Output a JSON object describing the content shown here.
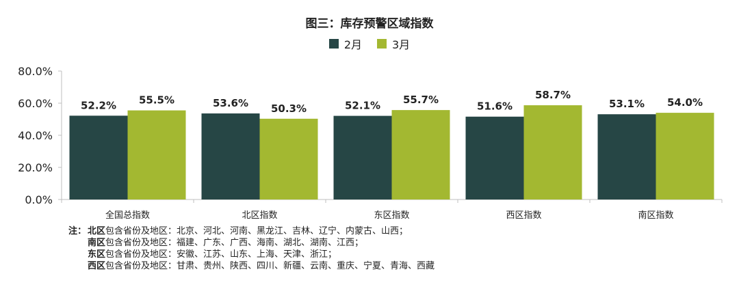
{
  "chart_data": {
    "type": "bar",
    "title": "图三：库存预警区域指数",
    "categories": [
      "全国总指数",
      "北区指数",
      "东区指数",
      "西区指数",
      "南区指数"
    ],
    "series": [
      {
        "name": "2月",
        "color": "#264645",
        "values": [
          52.2,
          53.6,
          52.1,
          51.6,
          53.1
        ],
        "labels": [
          "52.2%",
          "53.6%",
          "52.1%",
          "51.6%",
          "53.1%"
        ]
      },
      {
        "name": "3月",
        "color": "#a3b831",
        "values": [
          55.5,
          50.3,
          55.7,
          58.7,
          54.0
        ],
        "labels": [
          "55.5%",
          "50.3%",
          "55.7%",
          "58.7%",
          "54.0%"
        ]
      }
    ],
    "yticks": [
      "0.0%",
      "20.0%",
      "40.0%",
      "60.0%",
      "80.0%"
    ],
    "ylim": [
      0,
      80
    ],
    "grid": false,
    "legend_position": "top-center"
  },
  "notes": {
    "prefix": "注：",
    "rows": [
      {
        "region": "北区",
        "text": "包含省份及地区：北京、河北、河南、黑龙江、吉林、辽宁、内蒙古、山西；"
      },
      {
        "region": "南区",
        "text": "包含省份及地区：福建、广东、广西、海南、湖北、湖南、江西；"
      },
      {
        "region": "东区",
        "text": "包含省份及地区：安徽、江苏、山东、上海、天津、浙江；"
      },
      {
        "region": "西区",
        "text": "包含省份及地区：甘肃、贵州、陕西、四川、新疆、云南、重庆、宁夏、青海、西藏"
      }
    ]
  }
}
